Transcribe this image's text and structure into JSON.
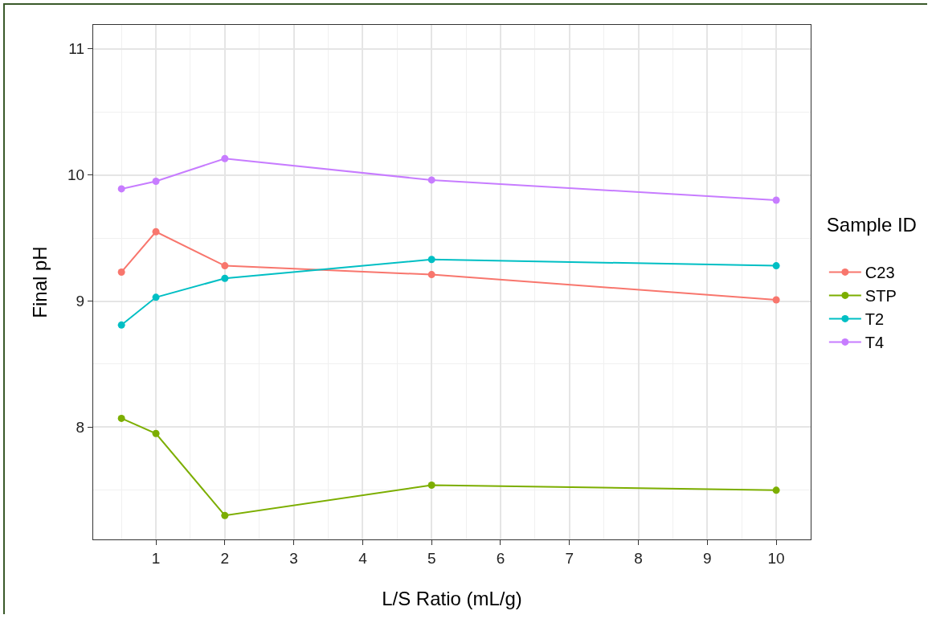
{
  "chart_data": {
    "type": "line",
    "xlabel": "L/S Ratio (mL/g)",
    "ylabel": "Final pH",
    "legend_title": "Sample ID",
    "x": [
      0.5,
      1,
      2,
      5,
      10
    ],
    "series": [
      {
        "name": "C23",
        "color": "#f8766d",
        "values": [
          9.23,
          9.55,
          9.28,
          9.21,
          9.01
        ]
      },
      {
        "name": "STP",
        "color": "#7cae00",
        "values": [
          8.07,
          7.95,
          7.3,
          7.54,
          7.5
        ]
      },
      {
        "name": "T2",
        "color": "#00bfc4",
        "values": [
          8.81,
          9.03,
          9.18,
          9.33,
          9.28
        ]
      },
      {
        "name": "T4",
        "color": "#c77cff",
        "values": [
          9.89,
          9.95,
          10.13,
          9.96,
          9.8
        ]
      }
    ],
    "xlim": [
      0.09,
      10.5
    ],
    "ylim": [
      7.11,
      11.19
    ],
    "xticks": [
      1,
      2,
      3,
      4,
      5,
      6,
      7,
      8,
      9,
      10
    ],
    "yticks": [
      8,
      9,
      10,
      11
    ],
    "grid": true,
    "legend": "right",
    "marker": "circle",
    "line_style": "solid"
  }
}
